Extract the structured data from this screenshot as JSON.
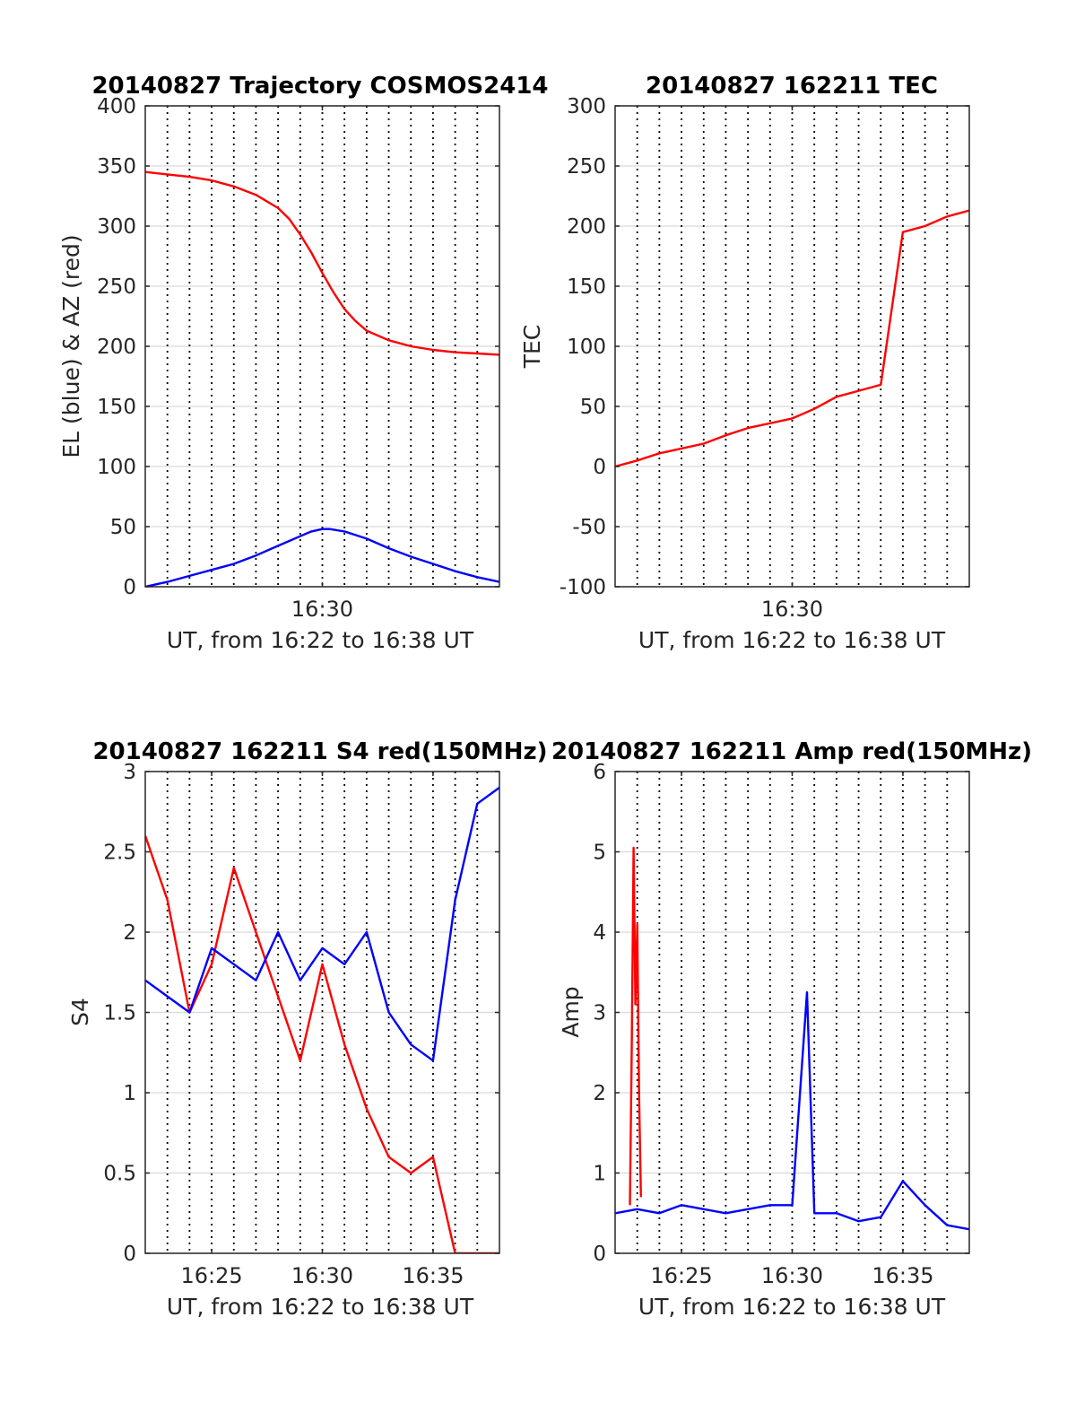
{
  "colors": {
    "red": "#ff0000",
    "blue": "#0000ff",
    "grid": "#d9d9d9",
    "vline": "#000000",
    "axis": "#262626"
  },
  "chart_data": [
    {
      "type": "line",
      "title": "20140827 Trajectory COSMOS2414",
      "xlabel": "UT, from 16:22 to 16:38 UT",
      "ylabel": "EL (blue) & AZ (red)",
      "xlim": [
        "16:22",
        "16:38"
      ],
      "ylim": [
        0,
        400
      ],
      "xticks": [
        "16:30"
      ],
      "yticks": [
        "0",
        "50",
        "100",
        "150",
        "200",
        "250",
        "300",
        "350",
        "400"
      ],
      "grid": "horizontal",
      "vlines": [
        "16:23",
        "16:24",
        "16:25",
        "16:26",
        "16:27",
        "16:28",
        "16:29",
        "16:30",
        "16:31",
        "16:32",
        "16:33",
        "16:34",
        "16:35",
        "16:36",
        "16:37"
      ],
      "series": [
        {
          "color": "red",
          "x": [
            "16:22",
            "16:23",
            "16:24",
            "16:25",
            "16:26",
            "16:27",
            "16:28",
            "16:28:30",
            "16:29",
            "16:29:30",
            "16:30",
            "16:30:30",
            "16:31",
            "16:31:30",
            "16:32",
            "16:33",
            "16:34",
            "16:35",
            "16:36",
            "16:37",
            "16:38"
          ],
          "values": [
            345,
            343,
            341,
            338,
            333,
            326,
            315,
            306,
            293,
            278,
            261,
            245,
            231,
            221,
            213,
            205,
            200,
            197,
            195,
            194,
            193
          ]
        },
        {
          "color": "blue",
          "x": [
            "16:22",
            "16:23",
            "16:24",
            "16:25",
            "16:26",
            "16:27",
            "16:28",
            "16:29",
            "16:29:30",
            "16:30",
            "16:30:20",
            "16:31",
            "16:32",
            "16:33",
            "16:34",
            "16:35",
            "16:36",
            "16:37",
            "16:38"
          ],
          "values": [
            0,
            4,
            9,
            14,
            19,
            26,
            34,
            42,
            46,
            48,
            48,
            46,
            40,
            32,
            25,
            19,
            13,
            8,
            4
          ]
        }
      ]
    },
    {
      "type": "line",
      "title": "20140827 162211 TEC",
      "xlabel": "UT, from 16:22 to 16:38 UT",
      "ylabel": "TEC",
      "xlim": [
        "16:22",
        "16:38"
      ],
      "ylim": [
        -100,
        300
      ],
      "xticks": [
        "16:30"
      ],
      "yticks": [
        "-100",
        "-50",
        "0",
        "50",
        "100",
        "150",
        "200",
        "250",
        "300"
      ],
      "grid": "horizontal",
      "vlines": [
        "16:23",
        "16:24",
        "16:25",
        "16:26",
        "16:27",
        "16:28",
        "16:29",
        "16:30",
        "16:31",
        "16:32",
        "16:33",
        "16:34",
        "16:35",
        "16:36",
        "16:37"
      ],
      "series": [
        {
          "color": "red",
          "x": [
            "16:22",
            "16:23",
            "16:24",
            "16:25",
            "16:26",
            "16:27",
            "16:28",
            "16:29",
            "16:30",
            "16:31",
            "16:32",
            "16:33",
            "16:34",
            "16:35",
            "16:36",
            "16:37",
            "16:38"
          ],
          "values": [
            0,
            5,
            11,
            15,
            19,
            26,
            32,
            36,
            40,
            48,
            58,
            63,
            68,
            195,
            200,
            208,
            213
          ]
        }
      ]
    },
    {
      "type": "line",
      "title": "20140827 162211 S4 red(150MHz)",
      "xlabel": "UT, from 16:22 to 16:38 UT",
      "ylabel": "S4",
      "xlim": [
        "16:22",
        "16:38"
      ],
      "ylim": [
        0,
        3
      ],
      "xticks": [
        "16:25",
        "16:30",
        "16:35"
      ],
      "yticks": [
        "0",
        "0.5",
        "1",
        "1.5",
        "2",
        "2.5",
        "3"
      ],
      "grid": "horizontal",
      "vlines": [
        "16:23",
        "16:24",
        "16:25",
        "16:26",
        "16:27",
        "16:28",
        "16:29",
        "16:30",
        "16:31",
        "16:32",
        "16:33",
        "16:34",
        "16:35",
        "16:36",
        "16:37"
      ],
      "series": [
        {
          "color": "red",
          "x": [
            "16:22",
            "16:23",
            "16:24",
            "16:25",
            "16:26",
            "16:27",
            "16:28",
            "16:29",
            "16:30",
            "16:31",
            "16:32",
            "16:33",
            "16:34",
            "16:35",
            "16:36",
            "16:37",
            "16:38"
          ],
          "values": [
            2.6,
            2.2,
            1.5,
            1.8,
            2.4,
            2.0,
            1.6,
            1.2,
            1.8,
            1.3,
            0.9,
            0.6,
            0.5,
            0.6,
            0,
            0,
            0
          ]
        },
        {
          "color": "blue",
          "x": [
            "16:22",
            "16:23",
            "16:24",
            "16:25",
            "16:26",
            "16:27",
            "16:28",
            "16:29",
            "16:30",
            "16:31",
            "16:32",
            "16:33",
            "16:34",
            "16:35",
            "16:36",
            "16:37",
            "16:38"
          ],
          "values": [
            1.7,
            1.6,
            1.5,
            1.9,
            1.8,
            1.7,
            2.0,
            1.7,
            1.9,
            1.8,
            2.0,
            1.5,
            1.3,
            1.2,
            2.2,
            2.8,
            2.9
          ]
        }
      ]
    },
    {
      "type": "line",
      "title": "20140827 162211 Amp red(150MHz)",
      "xlabel": "UT, from 16:22 to 16:38 UT",
      "ylabel": "Amp",
      "xlim": [
        "16:22",
        "16:38"
      ],
      "ylim": [
        0,
        6
      ],
      "xticks": [
        "16:25",
        "16:30",
        "16:35"
      ],
      "yticks": [
        "0",
        "1",
        "2",
        "3",
        "4",
        "5",
        "6"
      ],
      "grid": "horizontal",
      "vlines": [
        "16:23",
        "16:24",
        "16:25",
        "16:26",
        "16:27",
        "16:28",
        "16:29",
        "16:30",
        "16:31",
        "16:32",
        "16:33",
        "16:34",
        "16:35",
        "16:36",
        "16:37"
      ],
      "series": [
        {
          "color": "red",
          "x": [
            "16:22:40",
            "16:22:45",
            "16:22:50",
            "16:22:55",
            "16:23:00",
            "16:23:05",
            "16:23:10"
          ],
          "values": [
            0.6,
            2.5,
            5.05,
            3.1,
            4.1,
            2.0,
            0.7
          ]
        },
        {
          "color": "blue",
          "x": [
            "16:22",
            "16:23",
            "16:24",
            "16:25",
            "16:26",
            "16:27",
            "16:28",
            "16:29",
            "16:30",
            "16:30:40",
            "16:31",
            "16:32",
            "16:33",
            "16:34",
            "16:35",
            "16:36",
            "16:37",
            "16:38"
          ],
          "values": [
            0.5,
            0.55,
            0.5,
            0.6,
            0.55,
            0.5,
            0.55,
            0.6,
            0.6,
            3.25,
            0.5,
            0.5,
            0.4,
            0.45,
            0.9,
            0.6,
            0.35,
            0.3
          ]
        }
      ]
    }
  ]
}
